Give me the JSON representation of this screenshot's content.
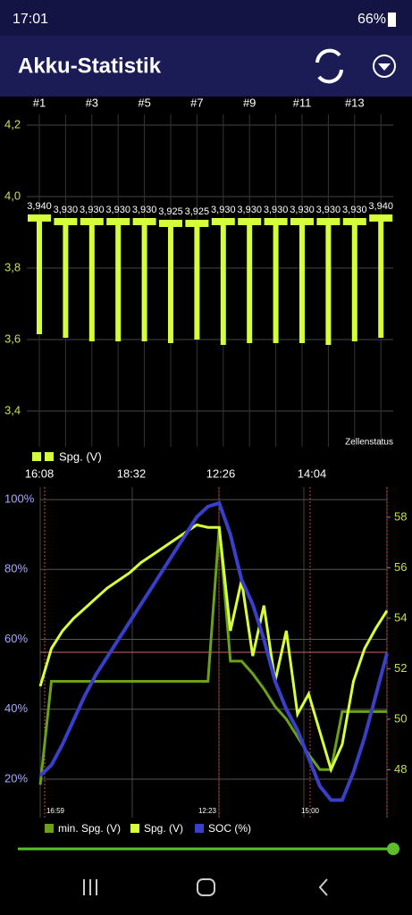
{
  "status_bar": {
    "time": "17:01",
    "battery": "66%"
  },
  "app_bar": {
    "title": "Akku-Statistik"
  },
  "cell_chart": {
    "type": "bar",
    "categories": [
      "#1",
      null,
      "#3",
      null,
      "#5",
      null,
      "#7",
      null,
      "#9",
      null,
      "#11",
      null,
      "#13",
      null
    ],
    "series": [
      {
        "name": "Spg. (V)",
        "color": "#d4ff3a",
        "values": [
          3.94,
          3.93,
          3.93,
          3.93,
          3.93,
          3.925,
          3.925,
          3.93,
          3.93,
          3.93,
          3.93,
          3.93,
          3.93,
          3.94
        ],
        "value_labels": [
          "3,940",
          "3,930",
          "3,930",
          "3,930",
          "3,930",
          "3,925",
          "3,925",
          "3,930",
          "3,930",
          "3,930",
          "3,930",
          "3,930",
          "3,930",
          "3,940"
        ]
      }
    ],
    "min_values": [
      3.615,
      3.605,
      3.595,
      3.595,
      3.595,
      3.59,
      3.6,
      3.585,
      3.59,
      3.59,
      3.59,
      3.585,
      3.595,
      3.605
    ],
    "annotation": "Zellenstatus",
    "ylim": [
      3.3,
      4.23
    ],
    "yticks": [
      {
        "value": 3.4,
        "label": "3,4"
      },
      {
        "value": 3.6,
        "label": "3,6"
      },
      {
        "value": 3.8,
        "label": "3,8"
      },
      {
        "value": 4.0,
        "label": "4,0"
      },
      {
        "value": 4.2,
        "label": "4,2"
      }
    ],
    "grid": true
  },
  "history_chart": {
    "type": "line",
    "time_labels_top": [
      "16:08",
      "18:32",
      "12:26",
      "14:04"
    ],
    "time_labels_bottom": [
      "16:59",
      "12:23",
      "15:00"
    ],
    "ylim": [
      9,
      103.6
    ],
    "yticks": [
      {
        "value": 20,
        "label": "20%"
      },
      {
        "value": 40,
        "label": "40%"
      },
      {
        "value": 60,
        "label": "60%"
      },
      {
        "value": 80,
        "label": "80%"
      },
      {
        "value": 100,
        "label": "100%"
      }
    ],
    "y2lim": [
      46.1,
      59.2
    ],
    "y2ticks": [
      48,
      50,
      52,
      54,
      56,
      58
    ],
    "grid": true,
    "series": [
      {
        "name": "min. Spg. (V)",
        "color": "#6aa118",
        "axis": "y2",
        "values": [
          47.4,
          51.5,
          51.5,
          51.5,
          51.5,
          51.5,
          51.5,
          51.5,
          51.5,
          51.5,
          51.5,
          51.5,
          51.5,
          51.5,
          51.5,
          51.5,
          57.6,
          52.3,
          52.3,
          51.8,
          51.2,
          50.5,
          50.0,
          49.3,
          48.6,
          48.0,
          48.0,
          50.3,
          50.3,
          50.3,
          50.3,
          50.3
        ]
      },
      {
        "name": "Spg. (V)",
        "color": "#d8ff3a",
        "axis": "y2",
        "values": [
          51.3,
          52.8,
          53.5,
          54.0,
          54.4,
          54.8,
          55.2,
          55.5,
          55.8,
          56.2,
          56.5,
          56.8,
          57.1,
          57.4,
          57.7,
          57.6,
          57.6,
          53.5,
          55.5,
          52.5,
          54.5,
          51.5,
          53.5,
          50.2,
          51.0,
          49.5,
          48.0,
          49.0,
          51.5,
          52.8,
          53.6,
          54.3
        ]
      },
      {
        "name": "SOC (%)",
        "color": "#3a3fc8",
        "values": [
          21,
          24,
          30,
          37,
          44,
          50,
          55,
          60,
          65,
          70,
          75,
          80,
          85,
          90,
          95,
          98,
          99,
          90,
          77,
          70,
          60,
          48,
          40,
          34,
          26,
          18,
          14,
          14,
          22,
          32,
          44,
          56
        ]
      }
    ]
  }
}
